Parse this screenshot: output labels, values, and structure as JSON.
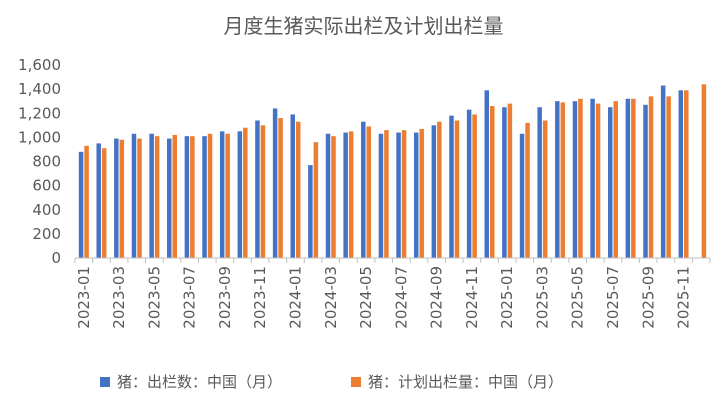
{
  "chart_data": {
    "type": "bar",
    "title": "月度生猪实际出栏及计划出栏量",
    "xlabel": "",
    "ylabel": "",
    "ylim": [
      0,
      1600
    ],
    "yticks": [
      "0",
      "200",
      "400",
      "600",
      "800",
      "1,000",
      "1,200",
      "1,400",
      "1,600"
    ],
    "grid": false,
    "legend_position": "bottom",
    "categories": [
      "2023-01",
      "2023-02",
      "2023-03",
      "2023-04",
      "2023-05",
      "2023-06",
      "2023-07",
      "2023-08",
      "2023-09",
      "2023-10",
      "2023-11",
      "2023-12",
      "2024-01",
      "2024-02",
      "2024-03",
      "2024-04",
      "2024-05",
      "2024-06",
      "2024-07",
      "2024-08",
      "2024-09",
      "2024-10",
      "2024-11",
      "2024-12",
      "2025-01",
      "2025-02",
      "2025-03",
      "2025-04",
      "2025-05",
      "2025-06",
      "2025-07",
      "2025-08",
      "2025-09",
      "2025-10",
      "2025-11",
      "2025-12"
    ],
    "xtick_labels": [
      "2023-01",
      "2023-03",
      "2023-05",
      "2023-07",
      "2023-09",
      "2023-11",
      "2024-01",
      "2024-03",
      "2024-05",
      "2024-07",
      "2024-09",
      "2024-11",
      "2025-01",
      "2025-03",
      "2025-05",
      "2025-07",
      "2025-09",
      "2025-11"
    ],
    "series": [
      {
        "name": "猪：出栏数：中国（月）",
        "color": "#4472C4",
        "values": [
          880,
          950,
          990,
          1030,
          1030,
          990,
          1010,
          1010,
          1050,
          1050,
          1140,
          1240,
          1190,
          770,
          1030,
          1040,
          1130,
          1030,
          1040,
          1040,
          1100,
          1180,
          1230,
          1390,
          1250,
          1030,
          1250,
          1300,
          1300,
          1320,
          1250,
          1320,
          1270,
          1430,
          1390,
          null
        ]
      },
      {
        "name": "猪：计划出栏量：中国（月）",
        "color": "#ED7D31",
        "values": [
          930,
          910,
          980,
          990,
          1010,
          1020,
          1010,
          1030,
          1030,
          1080,
          1100,
          1160,
          1130,
          960,
          1010,
          1050,
          1090,
          1060,
          1060,
          1070,
          1130,
          1140,
          1190,
          1260,
          1280,
          1120,
          1140,
          1290,
          1320,
          1280,
          1300,
          1320,
          1340,
          1340,
          1390,
          1440
        ]
      }
    ]
  }
}
